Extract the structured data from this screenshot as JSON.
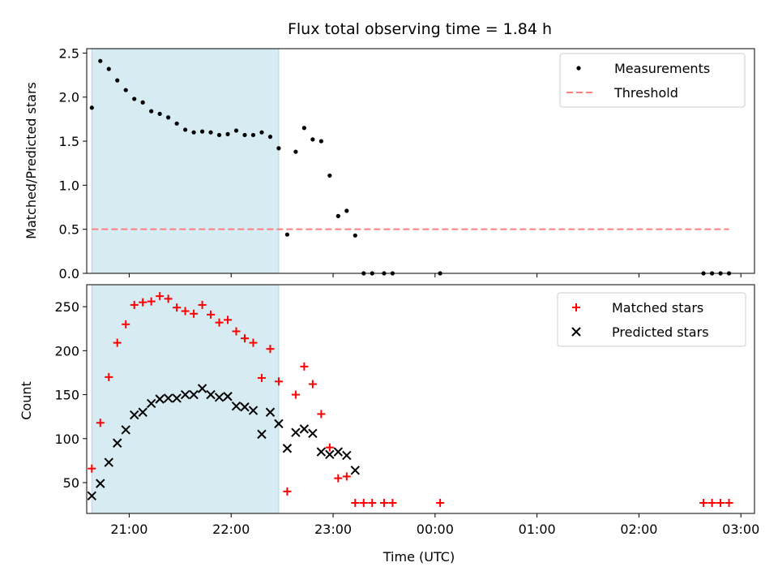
{
  "chart_data": [
    {
      "type": "scatter",
      "title": "Flux total observing time = 1.84 h",
      "xlabel": "",
      "ylabel": "Matched/Predicted stars",
      "ylim": [
        0,
        2.55
      ],
      "yticks": [
        "0.0",
        "0.5",
        "1.0",
        "1.5",
        "2.0",
        "2.5"
      ],
      "xlim": [
        "20:35",
        "03:08"
      ],
      "shaded_span": [
        "20:38",
        "22:28"
      ],
      "legend_position": "upper right",
      "series": [
        {
          "name": "Measurements",
          "color": "#000000",
          "marker": "dot",
          "points": [
            [
              "20:38",
              1.88
            ],
            [
              "20:43",
              2.41
            ],
            [
              "20:48",
              2.32
            ],
            [
              "20:53",
              2.19
            ],
            [
              "20:58",
              2.08
            ],
            [
              "21:03",
              1.98
            ],
            [
              "21:08",
              1.94
            ],
            [
              "21:13",
              1.84
            ],
            [
              "21:18",
              1.81
            ],
            [
              "21:23",
              1.77
            ],
            [
              "21:28",
              1.7
            ],
            [
              "21:33",
              1.63
            ],
            [
              "21:38",
              1.6
            ],
            [
              "21:43",
              1.61
            ],
            [
              "21:48",
              1.6
            ],
            [
              "21:53",
              1.57
            ],
            [
              "21:58",
              1.58
            ],
            [
              "22:03",
              1.62
            ],
            [
              "22:08",
              1.57
            ],
            [
              "22:13",
              1.57
            ],
            [
              "22:18",
              1.6
            ],
            [
              "22:23",
              1.55
            ],
            [
              "22:28",
              1.42
            ],
            [
              "22:33",
              0.44
            ],
            [
              "22:38",
              1.38
            ],
            [
              "22:43",
              1.65
            ],
            [
              "22:48",
              1.52
            ],
            [
              "22:53",
              1.5
            ],
            [
              "22:58",
              1.11
            ],
            [
              "23:03",
              0.65
            ],
            [
              "23:08",
              0.71
            ],
            [
              "23:13",
              0.43
            ],
            [
              "23:18",
              0.0
            ],
            [
              "23:23",
              0.0
            ],
            [
              "23:30",
              0.0
            ],
            [
              "23:35",
              0.0
            ],
            [
              "00:03",
              0.0
            ],
            [
              "02:38",
              0.0
            ],
            [
              "02:43",
              0.0
            ],
            [
              "02:48",
              0.0
            ],
            [
              "02:53",
              0.0
            ]
          ]
        },
        {
          "name": "Threshold",
          "color": "#ff7f7f",
          "marker": "dashed-line",
          "points": [
            [
              "20:38",
              0.5
            ],
            [
              "02:53",
              0.5
            ]
          ]
        }
      ]
    },
    {
      "type": "scatter",
      "title": "",
      "xlabel": "Time (UTC)",
      "ylabel": "Count",
      "ylim": [
        15,
        275
      ],
      "yticks": [
        "50",
        "100",
        "150",
        "200",
        "250"
      ],
      "xlim": [
        "20:35",
        "03:08"
      ],
      "xticks": [
        "21:00",
        "22:00",
        "23:00",
        "00:00",
        "01:00",
        "02:00",
        "03:00"
      ],
      "shaded_span": [
        "20:38",
        "22:28"
      ],
      "legend_position": "upper right",
      "series": [
        {
          "name": "Matched stars",
          "color": "#ff0000",
          "marker": "plus",
          "points": [
            [
              "20:38",
              66
            ],
            [
              "20:43",
              118
            ],
            [
              "20:48",
              170
            ],
            [
              "20:53",
              209
            ],
            [
              "20:58",
              230
            ],
            [
              "21:03",
              252
            ],
            [
              "21:08",
              255
            ],
            [
              "21:13",
              256
            ],
            [
              "21:18",
              262
            ],
            [
              "21:23",
              259
            ],
            [
              "21:28",
              249
            ],
            [
              "21:33",
              245
            ],
            [
              "21:38",
              242
            ],
            [
              "21:43",
              252
            ],
            [
              "21:48",
              241
            ],
            [
              "21:53",
              232
            ],
            [
              "21:58",
              235
            ],
            [
              "22:03",
              222
            ],
            [
              "22:08",
              214
            ],
            [
              "22:13",
              209
            ],
            [
              "22:18",
              169
            ],
            [
              "22:23",
              202
            ],
            [
              "22:28",
              165
            ],
            [
              "22:33",
              40
            ],
            [
              "22:38",
              150
            ],
            [
              "22:43",
              182
            ],
            [
              "22:48",
              162
            ],
            [
              "22:53",
              128
            ],
            [
              "22:58",
              90
            ],
            [
              "23:03",
              55
            ],
            [
              "23:08",
              57
            ],
            [
              "23:13",
              27
            ],
            [
              "23:18",
              27
            ],
            [
              "23:23",
              27
            ],
            [
              "23:30",
              27
            ],
            [
              "23:35",
              27
            ],
            [
              "00:03",
              27
            ],
            [
              "02:38",
              27
            ],
            [
              "02:43",
              27
            ],
            [
              "02:48",
              27
            ],
            [
              "02:53",
              27
            ]
          ]
        },
        {
          "name": "Predicted stars",
          "color": "#000000",
          "marker": "x",
          "points": [
            [
              "20:38",
              35
            ],
            [
              "20:43",
              49
            ],
            [
              "20:48",
              73
            ],
            [
              "20:53",
              95
            ],
            [
              "20:58",
              110
            ],
            [
              "21:03",
              127
            ],
            [
              "21:08",
              130
            ],
            [
              "21:13",
              140
            ],
            [
              "21:18",
              145
            ],
            [
              "21:23",
              146
            ],
            [
              "21:28",
              146
            ],
            [
              "21:33",
              150
            ],
            [
              "21:38",
              150
            ],
            [
              "21:43",
              157
            ],
            [
              "21:48",
              150
            ],
            [
              "21:53",
              147
            ],
            [
              "21:58",
              148
            ],
            [
              "22:03",
              137
            ],
            [
              "22:08",
              136
            ],
            [
              "22:13",
              132
            ],
            [
              "22:18",
              105
            ],
            [
              "22:23",
              130
            ],
            [
              "22:28",
              117
            ],
            [
              "22:33",
              89
            ],
            [
              "22:38",
              107
            ],
            [
              "22:43",
              111
            ],
            [
              "22:48",
              106
            ],
            [
              "22:53",
              85
            ],
            [
              "22:58",
              82
            ],
            [
              "23:03",
              85
            ],
            [
              "23:08",
              81
            ],
            [
              "23:13",
              64
            ]
          ]
        }
      ]
    }
  ]
}
